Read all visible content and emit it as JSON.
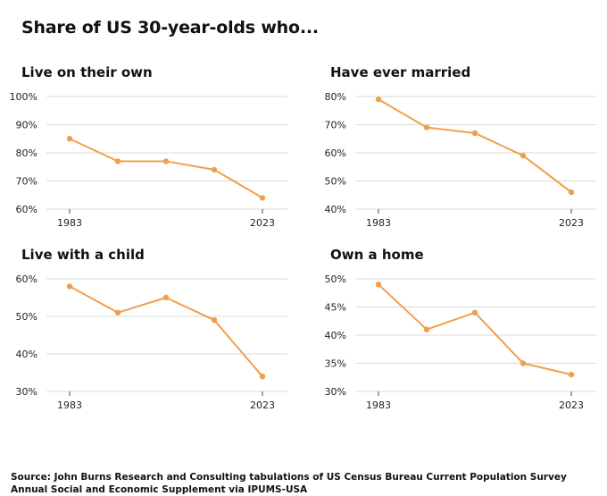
{
  "title": "Share of US 30-year-olds who...",
  "source": "Source: John Burns Research and Consulting tabulations of US Census Bureau Current Population Survey Annual Social and Economic Supplement via IPUMS-USA",
  "colors": {
    "line": "#F0A04B",
    "grid": "#d9d9d9",
    "axis": "#444444"
  },
  "chart_data": [
    {
      "type": "line",
      "title": "Live on their own",
      "x": [
        "1983",
        "",
        "",
        "",
        "2023"
      ],
      "x_tick_labels": [
        "1983",
        "2023"
      ],
      "values": [
        85,
        77,
        77,
        74,
        64
      ],
      "y_ticks": [
        "60%",
        "70%",
        "80%",
        "90%",
        "100%"
      ],
      "ylim": [
        60,
        100
      ],
      "grid": true
    },
    {
      "type": "line",
      "title": "Have ever married",
      "x": [
        "1983",
        "",
        "",
        "",
        "2023"
      ],
      "x_tick_labels": [
        "1983",
        "2023"
      ],
      "values": [
        79,
        69,
        67,
        59,
        46
      ],
      "y_ticks": [
        "40%",
        "50%",
        "60%",
        "70%",
        "80%"
      ],
      "ylim": [
        40,
        80
      ],
      "grid": true
    },
    {
      "type": "line",
      "title": "Live with a child",
      "x": [
        "1983",
        "",
        "",
        "",
        "2023"
      ],
      "x_tick_labels": [
        "1983",
        "2023"
      ],
      "values": [
        58,
        51,
        55,
        49,
        34
      ],
      "y_ticks": [
        "30%",
        "40%",
        "50%",
        "60%"
      ],
      "ylim": [
        30,
        60
      ],
      "grid": true
    },
    {
      "type": "line",
      "title": "Own a home",
      "x": [
        "1983",
        "",
        "",
        "",
        "2023"
      ],
      "x_tick_labels": [
        "1983",
        "2023"
      ],
      "values": [
        49,
        41,
        44,
        35,
        33
      ],
      "y_ticks": [
        "30%",
        "35%",
        "40%",
        "45%",
        "50%"
      ],
      "ylim": [
        30,
        50
      ],
      "grid": true
    }
  ]
}
